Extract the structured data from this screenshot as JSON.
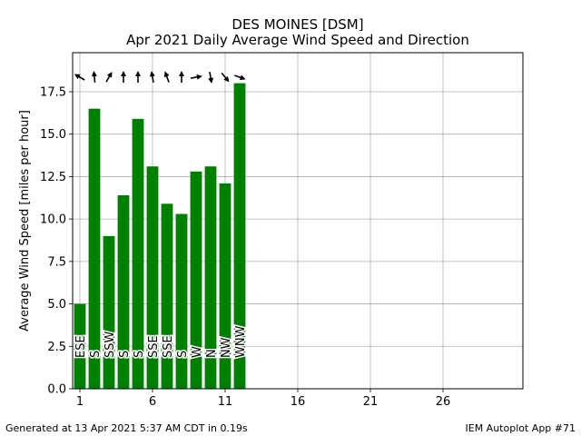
{
  "chart_data": {
    "type": "bar",
    "title": "DES MOINES [DSM]",
    "subtitle": "Apr 2021 Daily Average Wind Speed and Direction",
    "xlabel": "",
    "ylabel": "Average Wind Speed [miles per hour]",
    "x": [
      1,
      2,
      3,
      4,
      5,
      6,
      7,
      8,
      9,
      10,
      11,
      12
    ],
    "values": [
      5.0,
      16.5,
      9.0,
      11.4,
      15.9,
      13.1,
      10.9,
      10.3,
      12.8,
      13.1,
      12.1,
      18.0
    ],
    "directions": [
      "ESE",
      "S",
      "SSW",
      "S",
      "S",
      "SSE",
      "SSE",
      "S",
      "W",
      "N",
      "NW",
      "WNW"
    ],
    "arrow_bearings": [
      120,
      175,
      210,
      180,
      180,
      170,
      160,
      180,
      260,
      350,
      320,
      290
    ],
    "xticks": [
      1,
      6,
      11,
      16,
      21,
      26
    ],
    "yticks": [
      "0.0",
      "2.5",
      "5.0",
      "7.5",
      "10.0",
      "12.5",
      "15.0",
      "17.5"
    ],
    "xlim": [
      0.5,
      31.5
    ],
    "ylim": [
      0,
      19.8
    ],
    "grid": true,
    "bar_color": "#008000",
    "arrow_color": "#000000"
  },
  "footer": {
    "left": "Generated at 13 Apr 2021 5:37 AM CDT in 0.19s",
    "right": "IEM Autoplot App #71"
  }
}
